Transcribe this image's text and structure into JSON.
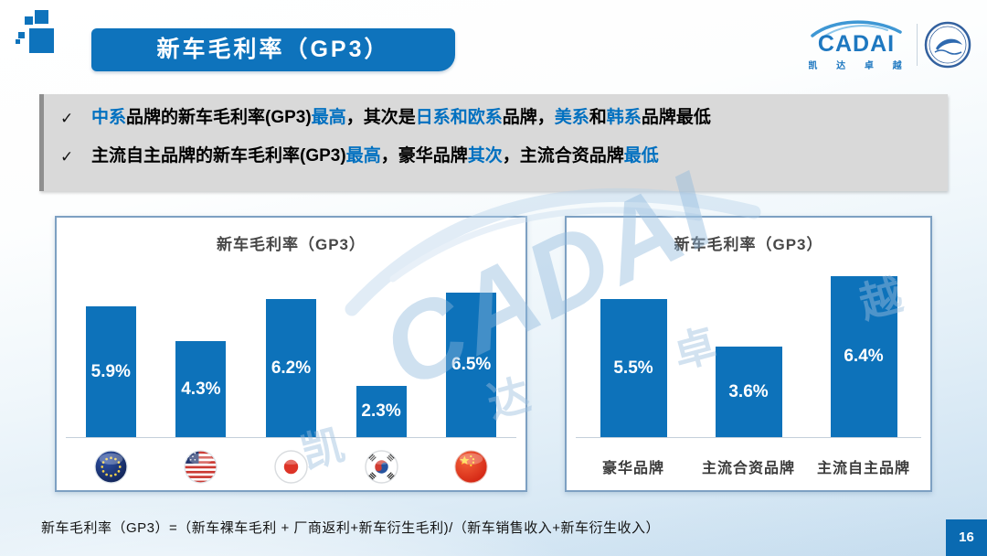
{
  "slide": {
    "banner_title": "新车毛利率（GP3）",
    "page_number": "16",
    "footer_formula": "新车毛利率（GP3）=（新车裸车毛利 + 厂商返利+新车衍生毛利)/（新车销售收入+新车衍生收入）",
    "check_glyph": "✓"
  },
  "logo": {
    "brand": "CADAI",
    "brand_cn": "凯 达 卓 越"
  },
  "watermark": {
    "brand": "CADAI",
    "brand_cn": "凯 达 卓 越"
  },
  "bullets": [
    {
      "segments": [
        {
          "text": "中系",
          "color": "blue"
        },
        {
          "text": "品牌的新车毛利率(GP3)",
          "color": "black"
        },
        {
          "text": "最高",
          "color": "blue"
        },
        {
          "text": "，其次是",
          "color": "black"
        },
        {
          "text": "日系和欧系",
          "color": "blue"
        },
        {
          "text": "品牌，",
          "color": "black"
        },
        {
          "text": "美系",
          "color": "blue"
        },
        {
          "text": "和",
          "color": "black"
        },
        {
          "text": "韩系",
          "color": "blue"
        },
        {
          "text": "品牌最低",
          "color": "black"
        }
      ]
    },
    {
      "segments": [
        {
          "text": "主流自主品牌的新车毛利率(GP3)",
          "color": "black"
        },
        {
          "text": "最高",
          "color": "blue"
        },
        {
          "text": "，豪华品牌",
          "color": "black"
        },
        {
          "text": "其次",
          "color": "blue"
        },
        {
          "text": "，主流合资品牌",
          "color": "black"
        },
        {
          "text": "最低",
          "color": "blue"
        }
      ]
    }
  ],
  "colors": {
    "accent_blue": "#0e73bc",
    "highlight_text_blue": "#0070c0",
    "bar_blue": "#0d72ba",
    "page_box_blue": "#0a6ab1",
    "findings_box_gray": "#d9d9d9"
  },
  "chart_data": [
    {
      "type": "bar",
      "title": "新车毛利率（GP3）",
      "categories": [
        "欧系",
        "美系",
        "日系",
        "韩系",
        "中系"
      ],
      "category_icons": [
        "eu-flag-icon",
        "usa-flag-icon",
        "japan-flag-icon",
        "korea-flag-icon",
        "china-flag-icon"
      ],
      "values": [
        5.9,
        4.3,
        6.2,
        2.3,
        6.5
      ],
      "value_labels": [
        "5.9%",
        "4.3%",
        "6.2%",
        "2.3%",
        "6.5%"
      ],
      "unit": "%",
      "bar_color": "#0d72ba",
      "y_axis_visible": false,
      "legend": "none"
    },
    {
      "type": "bar",
      "title": "新车毛利率（GP3）",
      "categories": [
        "豪华品牌",
        "主流合资品牌",
        "主流自主品牌"
      ],
      "values": [
        5.5,
        3.6,
        6.4
      ],
      "value_labels": [
        "5.5%",
        "3.6%",
        "6.4%"
      ],
      "unit": "%",
      "bar_color": "#0d72ba",
      "y_axis_visible": false,
      "legend": "none"
    }
  ]
}
